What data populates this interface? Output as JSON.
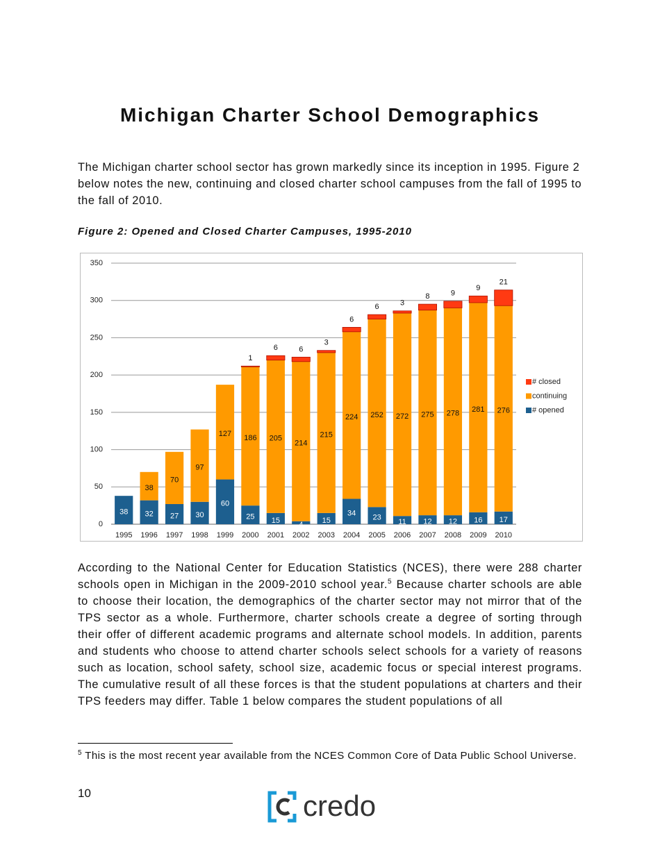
{
  "title": "Michigan Charter School Demographics",
  "intro": "The Michigan charter school sector has grown markedly since its inception in 1995. Figure 2 below notes the new, continuing and closed charter school campuses from the fall of 1995 to the fall of 2010.",
  "figure_caption": "Figure 2: Opened and Closed Charter Campuses, 1995-2010",
  "chart_data": {
    "type": "stacked_bar",
    "categories": [
      "1995",
      "1996",
      "1997",
      "1998",
      "1999",
      "2000",
      "2001",
      "2002",
      "2003",
      "2004",
      "2005",
      "2006",
      "2007",
      "2008",
      "2009",
      "2010"
    ],
    "series": [
      {
        "name": "# opened",
        "color": "#1d5f8f",
        "values": [
          38,
          32,
          27,
          30,
          60,
          25,
          15,
          4,
          15,
          34,
          23,
          11,
          12,
          12,
          16,
          17
        ]
      },
      {
        "name": "continuing",
        "color": "#ff9a00",
        "values": [
          null,
          38,
          70,
          97,
          127,
          186,
          205,
          214,
          215,
          224,
          252,
          272,
          275,
          278,
          281,
          276
        ]
      },
      {
        "name": "# closed",
        "color": "#ff3a12",
        "values": [
          null,
          null,
          null,
          null,
          null,
          1,
          6,
          6,
          3,
          6,
          6,
          3,
          8,
          9,
          9,
          21
        ]
      }
    ],
    "ylim": [
      0,
      350
    ],
    "yticks": [
      0,
      50,
      100,
      150,
      200,
      250,
      300,
      350
    ],
    "grid": true,
    "legend": "right"
  },
  "body": {
    "before": "According to the National Center for Education Statistics (NCES), there were 288 charter schools open in Michigan in the 2009-2010 school year.",
    "footnote_ref": "5",
    "after": " Because charter schools are able to choose their location, the demographics of the charter sector may not mirror that of the TPS sector as a whole.  Furthermore, charter schools create a degree of sorting through their offer of different academic programs and alternate school models.  In addition, parents and students who choose to attend charter schools select schools for a variety of reasons such as location, school safety, school size, academic focus or special interest programs.  The cumulative result of all these forces is that the student populations at charters and their TPS feeders may differ.  Table 1 below compares the student populations of all"
  },
  "footnote": {
    "marker": "5",
    "text": " This is the most recent year available from the NCES Common Core of Data Public School Universe."
  },
  "page_number": "10",
  "logo_text": "credo"
}
